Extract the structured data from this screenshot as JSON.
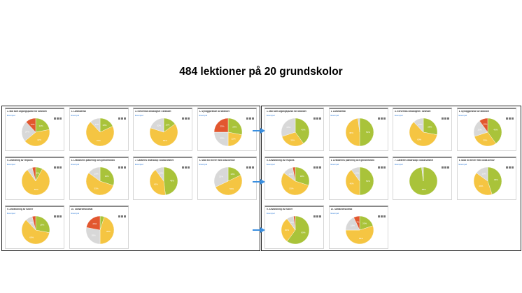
{
  "heading": "484 lektioner på 20 grundskolor",
  "colors": {
    "green": "#a9c33a",
    "yellow": "#f5c542",
    "grey": "#d8d8d8",
    "red": "#e2572f",
    "link": "#2e7bd6",
    "arrow": "#3a8fe0"
  },
  "card_subtitle": "Exempel",
  "left_panel": {
    "cards": [
      {
        "title": "1. Mål som utgångspunkt för lärandet",
        "slices": [
          [
            "green",
            22
          ],
          [
            "yellow",
            42
          ],
          [
            "grey",
            24
          ],
          [
            "red",
            12
          ]
        ]
      },
      {
        "title": "2. Lärandemål",
        "slices": [
          [
            "green",
            18
          ],
          [
            "yellow",
            70
          ],
          [
            "grey",
            12
          ]
        ]
      },
      {
        "title": "3. Elevernas delaktighet i lärandet",
        "slices": [
          [
            "green",
            15
          ],
          [
            "yellow",
            65
          ],
          [
            "grey",
            20
          ]
        ]
      },
      {
        "title": "4. Synliggörande av lärandet",
        "slices": [
          [
            "green",
            28
          ],
          [
            "yellow",
            22
          ],
          [
            "grey",
            25
          ],
          [
            "red",
            25
          ]
        ]
      },
      {
        "title": "5. Anledning av respons",
        "slices": [
          [
            "green",
            8
          ],
          [
            "yellow",
            82
          ],
          [
            "grey",
            6
          ],
          [
            "red",
            4
          ]
        ]
      },
      {
        "title": "6. Lektionens planering och genomförande",
        "slices": [
          [
            "green",
            30
          ],
          [
            "yellow",
            55
          ],
          [
            "grey",
            15
          ]
        ]
      },
      {
        "title": "7. Lärarens ledarskap i klassrummet",
        "slices": [
          [
            "green",
            48
          ],
          [
            "yellow",
            42
          ],
          [
            "grey",
            10
          ]
        ]
      },
      {
        "title": "8. Stöd till elever med olika behov",
        "slices": [
          [
            "green",
            18
          ],
          [
            "yellow",
            50
          ],
          [
            "grey",
            32
          ]
        ]
      },
      {
        "title": "9. Användning av rutiner",
        "slices": [
          [
            "green",
            28
          ],
          [
            "yellow",
            60
          ],
          [
            "grey",
            8
          ],
          [
            "red",
            4
          ]
        ]
      },
      {
        "title": "10. Samarbetsklimat",
        "slices": [
          [
            "green",
            5
          ],
          [
            "yellow",
            45
          ],
          [
            "grey",
            28
          ],
          [
            "red",
            22
          ]
        ]
      }
    ]
  },
  "right_panel": {
    "cards": [
      {
        "title": "1. Mål som utgångspunkt för lärandet",
        "slices": [
          [
            "green",
            40
          ],
          [
            "yellow",
            30
          ],
          [
            "grey",
            30
          ]
        ]
      },
      {
        "title": "2. Lärandemål",
        "slices": [
          [
            "green",
            50
          ],
          [
            "yellow",
            48
          ],
          [
            "grey",
            2
          ]
        ]
      },
      {
        "title": "3. Elevernas delaktighet i lärandet",
        "slices": [
          [
            "green",
            28
          ],
          [
            "yellow",
            60
          ],
          [
            "grey",
            12
          ]
        ]
      },
      {
        "title": "4. Synliggörande av lärandet",
        "slices": [
          [
            "green",
            40
          ],
          [
            "yellow",
            30
          ],
          [
            "grey",
            20
          ],
          [
            "red",
            10
          ]
        ]
      },
      {
        "title": "5. Användning av respons",
        "slices": [
          [
            "green",
            30
          ],
          [
            "yellow",
            55
          ],
          [
            "grey",
            12
          ],
          [
            "red",
            3
          ]
        ]
      },
      {
        "title": "6. Lektionens planering och genomförande",
        "slices": [
          [
            "green",
            50
          ],
          [
            "yellow",
            40
          ],
          [
            "grey",
            10
          ]
        ]
      },
      {
        "title": "7. Lärarens ledarskap i klassrummet",
        "slices": [
          [
            "green",
            98
          ],
          [
            "grey",
            2
          ]
        ]
      },
      {
        "title": "8. Stöd till elever med olika behov",
        "slices": [
          [
            "green",
            45
          ],
          [
            "yellow",
            40
          ],
          [
            "grey",
            15
          ]
        ]
      },
      {
        "title": "9. Användning av rutiner",
        "slices": [
          [
            "green",
            60
          ],
          [
            "yellow",
            30
          ],
          [
            "grey",
            8
          ],
          [
            "red",
            2
          ]
        ]
      },
      {
        "title": "10. Samarbetsklimat",
        "slices": [
          [
            "green",
            20
          ],
          [
            "yellow",
            55
          ],
          [
            "grey",
            18
          ],
          [
            "red",
            7
          ]
        ]
      }
    ]
  }
}
